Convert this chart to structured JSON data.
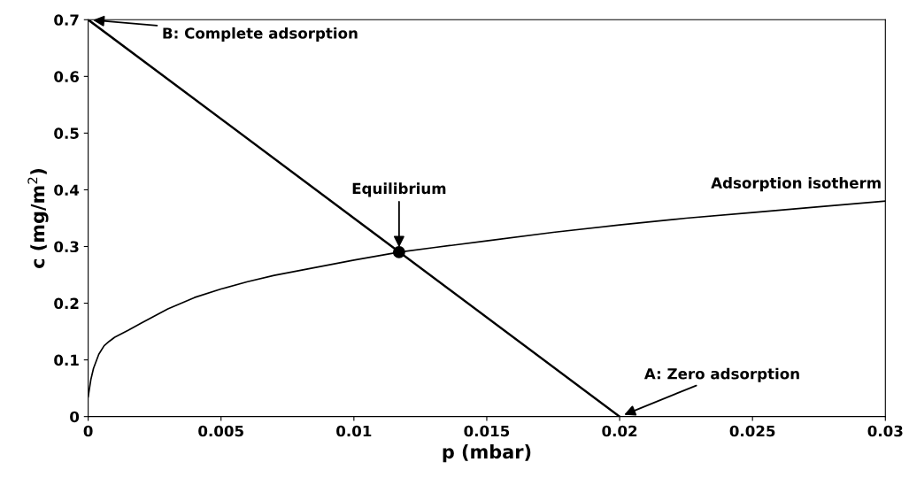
{
  "chart_data": {
    "type": "line",
    "xlabel": "p (mbar)",
    "ylabel": "c (mg/m$^{2}$)",
    "xlim": [
      0,
      0.03
    ],
    "ylim": [
      0,
      0.7
    ],
    "xticks": [
      0,
      0.005,
      0.01,
      0.015,
      0.02,
      0.025,
      0.03
    ],
    "yticks": [
      0,
      0.1,
      0.2,
      0.3,
      0.4,
      0.5,
      0.6,
      0.7
    ],
    "grid": false,
    "legend": false,
    "marker": "none",
    "line_style": "solid",
    "series": [
      {
        "name": "Adsorption isotherm",
        "color": "#000000",
        "x": [
          0,
          0.0001,
          0.0002,
          0.0004,
          0.0006,
          0.0008,
          0.001,
          0.0015,
          0.002,
          0.003,
          0.004,
          0.005,
          0.006,
          0.007,
          0.008,
          0.009,
          0.01,
          0.0117,
          0.013,
          0.015,
          0.0175,
          0.02,
          0.0225,
          0.025,
          0.0275,
          0.03
        ],
        "values": [
          0.035,
          0.065,
          0.085,
          0.11,
          0.125,
          0.133,
          0.14,
          0.152,
          0.165,
          0.19,
          0.21,
          0.225,
          0.238,
          0.249,
          0.258,
          0.267,
          0.276,
          0.29,
          0.298,
          0.31,
          0.325,
          0.338,
          0.35,
          0.36,
          0.37,
          0.38
        ]
      },
      {
        "type": "line",
        "color": "#000000",
        "x": [
          0,
          0.02
        ],
        "values": [
          0.7,
          0
        ]
      },
      {
        "type": "scatter",
        "marker": "circle",
        "color": "#000000",
        "x": [
          0.0117
        ],
        "values": [
          0.29
        ]
      }
    ],
    "annotations": [
      {
        "text": "B: Complete adsorption",
        "x": 0,
        "y": 0.7
      },
      {
        "text": "Equilibrium",
        "x": 0.0117,
        "y": 0.29
      },
      {
        "text": "A: Zero adsorption",
        "x": 0.02,
        "y": 0
      }
    ]
  }
}
